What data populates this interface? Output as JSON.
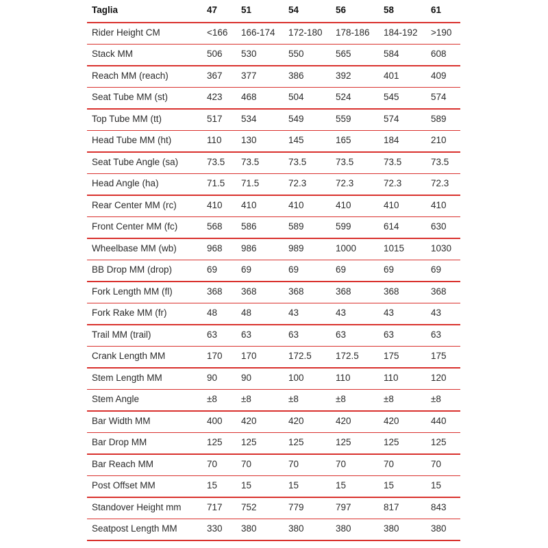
{
  "table": {
    "header": [
      "Taglia",
      "47",
      "51",
      "54",
      "56",
      "58",
      "61"
    ],
    "rows": [
      [
        "Rider Height CM",
        "<166",
        "166-174",
        "172-180",
        "178-186",
        "184-192",
        ">190"
      ],
      [
        "Stack MM",
        "506",
        "530",
        "550",
        "565",
        "584",
        "608"
      ],
      [
        "Reach MM (reach)",
        "367",
        "377",
        "386",
        "392",
        "401",
        "409"
      ],
      [
        "Seat Tube MM (st)",
        "423",
        "468",
        "504",
        "524",
        "545",
        "574"
      ],
      [
        "Top Tube MM (tt)",
        "517",
        "534",
        "549",
        "559",
        "574",
        "589"
      ],
      [
        "Head Tube MM (ht)",
        "110",
        "130",
        "145",
        "165",
        "184",
        "210"
      ],
      [
        "Seat Tube Angle (sa)",
        "73.5",
        "73.5",
        "73.5",
        "73.5",
        "73.5",
        "73.5"
      ],
      [
        "Head Angle (ha)",
        "71.5",
        "71.5",
        "72.3",
        "72.3",
        "72.3",
        "72.3"
      ],
      [
        "Rear Center MM (rc)",
        "410",
        "410",
        "410",
        "410",
        "410",
        "410"
      ],
      [
        "Front Center MM (fc)",
        "568",
        "586",
        "589",
        "599",
        "614",
        "630"
      ],
      [
        "Wheelbase MM (wb)",
        "968",
        "986",
        "989",
        "1000",
        "1015",
        "1030"
      ],
      [
        "BB Drop MM (drop)",
        "69",
        "69",
        "69",
        "69",
        "69",
        "69"
      ],
      [
        "Fork Length MM (fl)",
        "368",
        "368",
        "368",
        "368",
        "368",
        "368"
      ],
      [
        "Fork Rake MM (fr)",
        "48",
        "48",
        "43",
        "43",
        "43",
        "43"
      ],
      [
        "Trail MM (trail)",
        "63",
        "63",
        "63",
        "63",
        "63",
        "63"
      ],
      [
        "Crank Length MM",
        "170",
        "170",
        "172.5",
        "172.5",
        "175",
        "175"
      ],
      [
        "Stem Length MM",
        "90",
        "90",
        "100",
        "110",
        "110",
        "120"
      ],
      [
        "Stem Angle",
        "±8",
        "±8",
        "±8",
        "±8",
        "±8",
        "±8"
      ],
      [
        "Bar Width MM",
        "400",
        "420",
        "420",
        "420",
        "420",
        "440"
      ],
      [
        "Bar Drop MM",
        "125",
        "125",
        "125",
        "125",
        "125",
        "125"
      ],
      [
        "Bar Reach MM",
        "70",
        "70",
        "70",
        "70",
        "70",
        "70"
      ],
      [
        "Post Offset MM",
        "15",
        "15",
        "15",
        "15",
        "15",
        "15"
      ],
      [
        "Standover Height mm",
        "717",
        "752",
        "779",
        "797",
        "817",
        "843"
      ],
      [
        "Seatpost Length MM",
        "330",
        "380",
        "380",
        "380",
        "380",
        "380"
      ]
    ]
  }
}
